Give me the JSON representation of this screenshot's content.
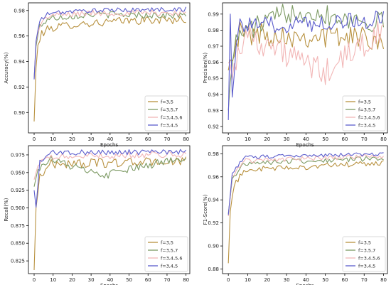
{
  "chart_data": [
    {
      "type": "line",
      "xlabel": "Epochs",
      "ylabel": "Accuracy(%)",
      "xlim": [
        -3,
        82
      ],
      "ylim": [
        0.884,
        0.986
      ],
      "xticks": [
        0,
        10,
        20,
        30,
        40,
        50,
        60,
        70,
        80
      ],
      "yticks": [
        0.9,
        0.92,
        0.94,
        0.96,
        0.98
      ],
      "ytick_labels": [
        "0.90",
        "0.92",
        "0.94",
        "0.96",
        "0.98"
      ],
      "legend_loc": "lower-right",
      "series": [
        {
          "name": "f=3,5",
          "color": "#b8913f",
          "start": 0.893,
          "plateau": 0.972,
          "k": 3.6,
          "noise": 0.0032,
          "ranges": [
            [
              0,
              0.893
            ],
            [
              1,
              0.935
            ],
            [
              2,
              0.952
            ],
            [
              4,
              0.962
            ],
            [
              8,
              0.966
            ],
            [
              20,
              0.969
            ],
            [
              50,
              0.972
            ],
            [
              80,
              0.973
            ]
          ]
        },
        {
          "name": "f=3,5,7",
          "color": "#7d9a64",
          "start": 0.927,
          "plateau": 0.977,
          "k": 3.2,
          "noise": 0.0026,
          "ranges": [
            [
              0,
              0.927
            ],
            [
              1,
              0.952
            ],
            [
              3,
              0.968
            ],
            [
              8,
              0.974
            ],
            [
              30,
              0.977
            ],
            [
              80,
              0.976
            ]
          ]
        },
        {
          "name": "f=3,4,5,6",
          "color": "#f2b6b6",
          "start": 0.926,
          "plateau": 0.978,
          "k": 3.0,
          "noise": 0.0024,
          "ranges": [
            [
              0,
              0.926
            ],
            [
              1,
              0.955
            ],
            [
              3,
              0.969
            ],
            [
              8,
              0.976
            ],
            [
              30,
              0.978
            ],
            [
              80,
              0.978
            ]
          ]
        },
        {
          "name": "f=3,4,5",
          "color": "#5b5ccc",
          "start": 0.926,
          "plateau": 0.98,
          "k": 2.8,
          "noise": 0.0018,
          "ranges": [
            [
              0,
              0.926
            ],
            [
              1,
              0.956
            ],
            [
              3,
              0.972
            ],
            [
              8,
              0.978
            ],
            [
              30,
              0.98
            ],
            [
              80,
              0.981
            ]
          ]
        }
      ]
    },
    {
      "type": "line",
      "xlabel": "Epochs",
      "ylabel": "Precision(%)",
      "xlim": [
        -3,
        82
      ],
      "ylim": [
        0.916,
        0.997
      ],
      "xticks": [
        0,
        10,
        20,
        30,
        40,
        50,
        60,
        70,
        80
      ],
      "yticks": [
        0.92,
        0.93,
        0.94,
        0.95,
        0.96,
        0.97,
        0.98,
        0.99
      ],
      "ytick_labels": [
        "0.92",
        "0.93",
        "0.94",
        "0.95",
        "0.96",
        "0.97",
        "0.98",
        "0.99"
      ],
      "legend_loc": "lower-right",
      "series": [
        {
          "name": "f=3,5",
          "color": "#b8913f",
          "start": 0.955,
          "plateau": 0.981,
          "k": 1.5,
          "noise": 0.0075,
          "ranges": [
            [
              0,
              0.955
            ],
            [
              2,
              0.968
            ],
            [
              6,
              0.978
            ],
            [
              80,
              0.975
            ]
          ]
        },
        {
          "name": "f=3,5,7",
          "color": "#7d9a64",
          "start": 0.93,
          "plateau": 0.982,
          "k": 1.5,
          "noise": 0.007,
          "ranges": [
            [
              0,
              0.93
            ],
            [
              2,
              0.965
            ],
            [
              6,
              0.978
            ],
            [
              35,
              0.993
            ],
            [
              80,
              0.984
            ]
          ]
        },
        {
          "name": "f=3,4,5,6",
          "color": "#f2b6b6",
          "start": 0.96,
          "plateau": 0.98,
          "k": 1.5,
          "noise": 0.0085,
          "ranges": [
            [
              0,
              0.96
            ],
            [
              3,
              0.955
            ],
            [
              8,
              0.978
            ],
            [
              50,
              0.953
            ],
            [
              80,
              0.981
            ]
          ]
        },
        {
          "name": "f=3,4,5",
          "color": "#5b5ccc",
          "start": 0.924,
          "plateau": 0.984,
          "k": 1.2,
          "noise": 0.0055,
          "ranges": [
            [
              0,
              0.924
            ],
            [
              1,
              0.99
            ],
            [
              2,
              0.943
            ],
            [
              5,
              0.982
            ],
            [
              80,
              0.987
            ]
          ]
        }
      ]
    },
    {
      "type": "line",
      "xlabel": "Epochs",
      "ylabel": "Recall(%)",
      "xlim": [
        -3,
        82
      ],
      "ylim": [
        0.807,
        0.988
      ],
      "xticks": [
        0,
        10,
        20,
        30,
        40,
        50,
        60,
        70,
        80
      ],
      "yticks": [
        0.825,
        0.85,
        0.875,
        0.9,
        0.925,
        0.95,
        0.975
      ],
      "ytick_labels": [
        "0.825",
        "0.850",
        "0.875",
        "0.900",
        "0.925",
        "0.950",
        "0.975"
      ],
      "legend_loc": "lower-right",
      "series": [
        {
          "name": "f=3,5",
          "color": "#b8913f",
          "start": 0.812,
          "plateau": 0.968,
          "k": 3.0,
          "noise": 0.0065,
          "ranges": [
            [
              0,
              0.812
            ],
            [
              1,
              0.9
            ],
            [
              3,
              0.945
            ],
            [
              8,
              0.962
            ],
            [
              80,
              0.966
            ]
          ]
        },
        {
          "name": "f=3,5,7",
          "color": "#7d9a64",
          "start": 0.93,
          "plateau": 0.973,
          "k": 2.5,
          "noise": 0.0055,
          "ranges": [
            [
              0,
              0.93
            ],
            [
              2,
              0.955
            ],
            [
              8,
              0.97
            ],
            [
              35,
              0.945
            ],
            [
              80,
              0.972
            ]
          ]
        },
        {
          "name": "f=3,4,5,6",
          "color": "#f2b6b6",
          "start": 0.94,
          "plateau": 0.975,
          "k": 2.5,
          "noise": 0.0045,
          "ranges": [
            [
              0,
              0.94
            ],
            [
              2,
              0.96
            ],
            [
              8,
              0.972
            ],
            [
              80,
              0.976
            ]
          ]
        },
        {
          "name": "f=3,4,5",
          "color": "#5b5ccc",
          "start": 0.925,
          "plateau": 0.978,
          "k": 2.0,
          "noise": 0.004,
          "ranges": [
            [
              0,
              0.925
            ],
            [
              1,
              0.901
            ],
            [
              3,
              0.965
            ],
            [
              8,
              0.978
            ],
            [
              80,
              0.979
            ]
          ]
        }
      ]
    },
    {
      "type": "line",
      "xlabel": "Epochs",
      "ylabel": "F1-Score(%)",
      "xlim": [
        -3,
        82
      ],
      "ylim": [
        0.876,
        0.987
      ],
      "xticks": [
        0,
        10,
        20,
        30,
        40,
        50,
        60,
        70,
        80
      ],
      "yticks": [
        0.88,
        0.9,
        0.92,
        0.94,
        0.96,
        0.98
      ],
      "ytick_labels": [
        "0.88",
        "0.90",
        "0.92",
        "0.94",
        "0.96",
        "0.98"
      ],
      "legend_loc": "lower-right",
      "series": [
        {
          "name": "f=3,5",
          "color": "#b8913f",
          "start": 0.885,
          "plateau": 0.973,
          "k": 3.5,
          "noise": 0.0025,
          "ranges": [
            [
              0,
              0.885
            ],
            [
              1,
              0.93
            ],
            [
              3,
              0.952
            ],
            [
              8,
              0.966
            ],
            [
              80,
              0.972
            ]
          ]
        },
        {
          "name": "f=3,5,7",
          "color": "#7d9a64",
          "start": 0.928,
          "plateau": 0.976,
          "k": 3.0,
          "noise": 0.0022,
          "ranges": [
            [
              0,
              0.928
            ],
            [
              2,
              0.957
            ],
            [
              8,
              0.972
            ],
            [
              80,
              0.976
            ]
          ]
        },
        {
          "name": "f=3,4,5,6",
          "color": "#f2b6b6",
          "start": 0.926,
          "plateau": 0.978,
          "k": 3.0,
          "noise": 0.002,
          "ranges": [
            [
              0,
              0.926
            ],
            [
              2,
              0.96
            ],
            [
              8,
              0.974
            ],
            [
              80,
              0.978
            ]
          ]
        },
        {
          "name": "f=3,4,5",
          "color": "#5b5ccc",
          "start": 0.927,
          "plateau": 0.98,
          "k": 2.5,
          "noise": 0.0016,
          "ranges": [
            [
              0,
              0.927
            ],
            [
              2,
              0.962
            ],
            [
              8,
              0.977
            ],
            [
              80,
              0.98
            ]
          ]
        }
      ]
    }
  ]
}
